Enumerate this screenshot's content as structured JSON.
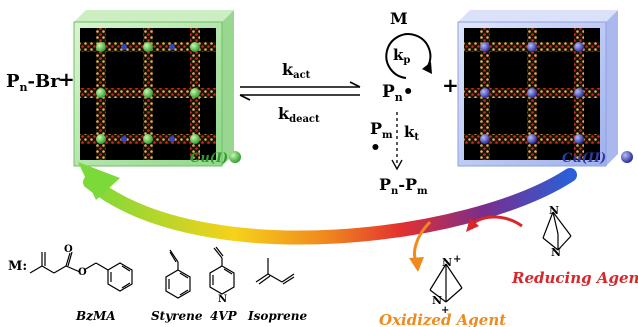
{
  "reaction": {
    "initiator_base": "P",
    "initiator_sub": "n",
    "initiator_suffix": "-Br",
    "plus": "+",
    "k_act_base": "k",
    "k_act_sub": "act",
    "k_deact_base": "k",
    "k_deact_sub": "deact",
    "monomer_symbol": "M",
    "k_p_base": "k",
    "k_p_sub": "p",
    "radical_base": "P",
    "radical_sub": "n",
    "radical_dot": "•",
    "pm_base": "P",
    "pm_sub": "m",
    "pm_dot": "•",
    "k_t_base": "k",
    "k_t_sub": "t",
    "product_base": "P",
    "product_sub_n": "n",
    "product_dash": "-P",
    "product_sub_m": "m"
  },
  "catalysts": {
    "cu1_label": "Cu(I)",
    "cu2_label": "Cu(II)",
    "cu1_color": "#3fb63a",
    "cu2_color": "#3b3fb0"
  },
  "agents": {
    "reducing_label": "Reducing Agent",
    "oxidized_label": "Oxidized Agent",
    "reducing_color": "#d9262a",
    "oxidized_color": "#f08a1c",
    "n_atom": "N",
    "plus_charge": "+"
  },
  "monomers": {
    "title": "M:",
    "items": [
      {
        "name": "BzMA"
      },
      {
        "name": "Styrene"
      },
      {
        "name": "4VP"
      },
      {
        "name": "Isoprene"
      }
    ],
    "n_atom": "N",
    "o_atom": "O"
  }
}
